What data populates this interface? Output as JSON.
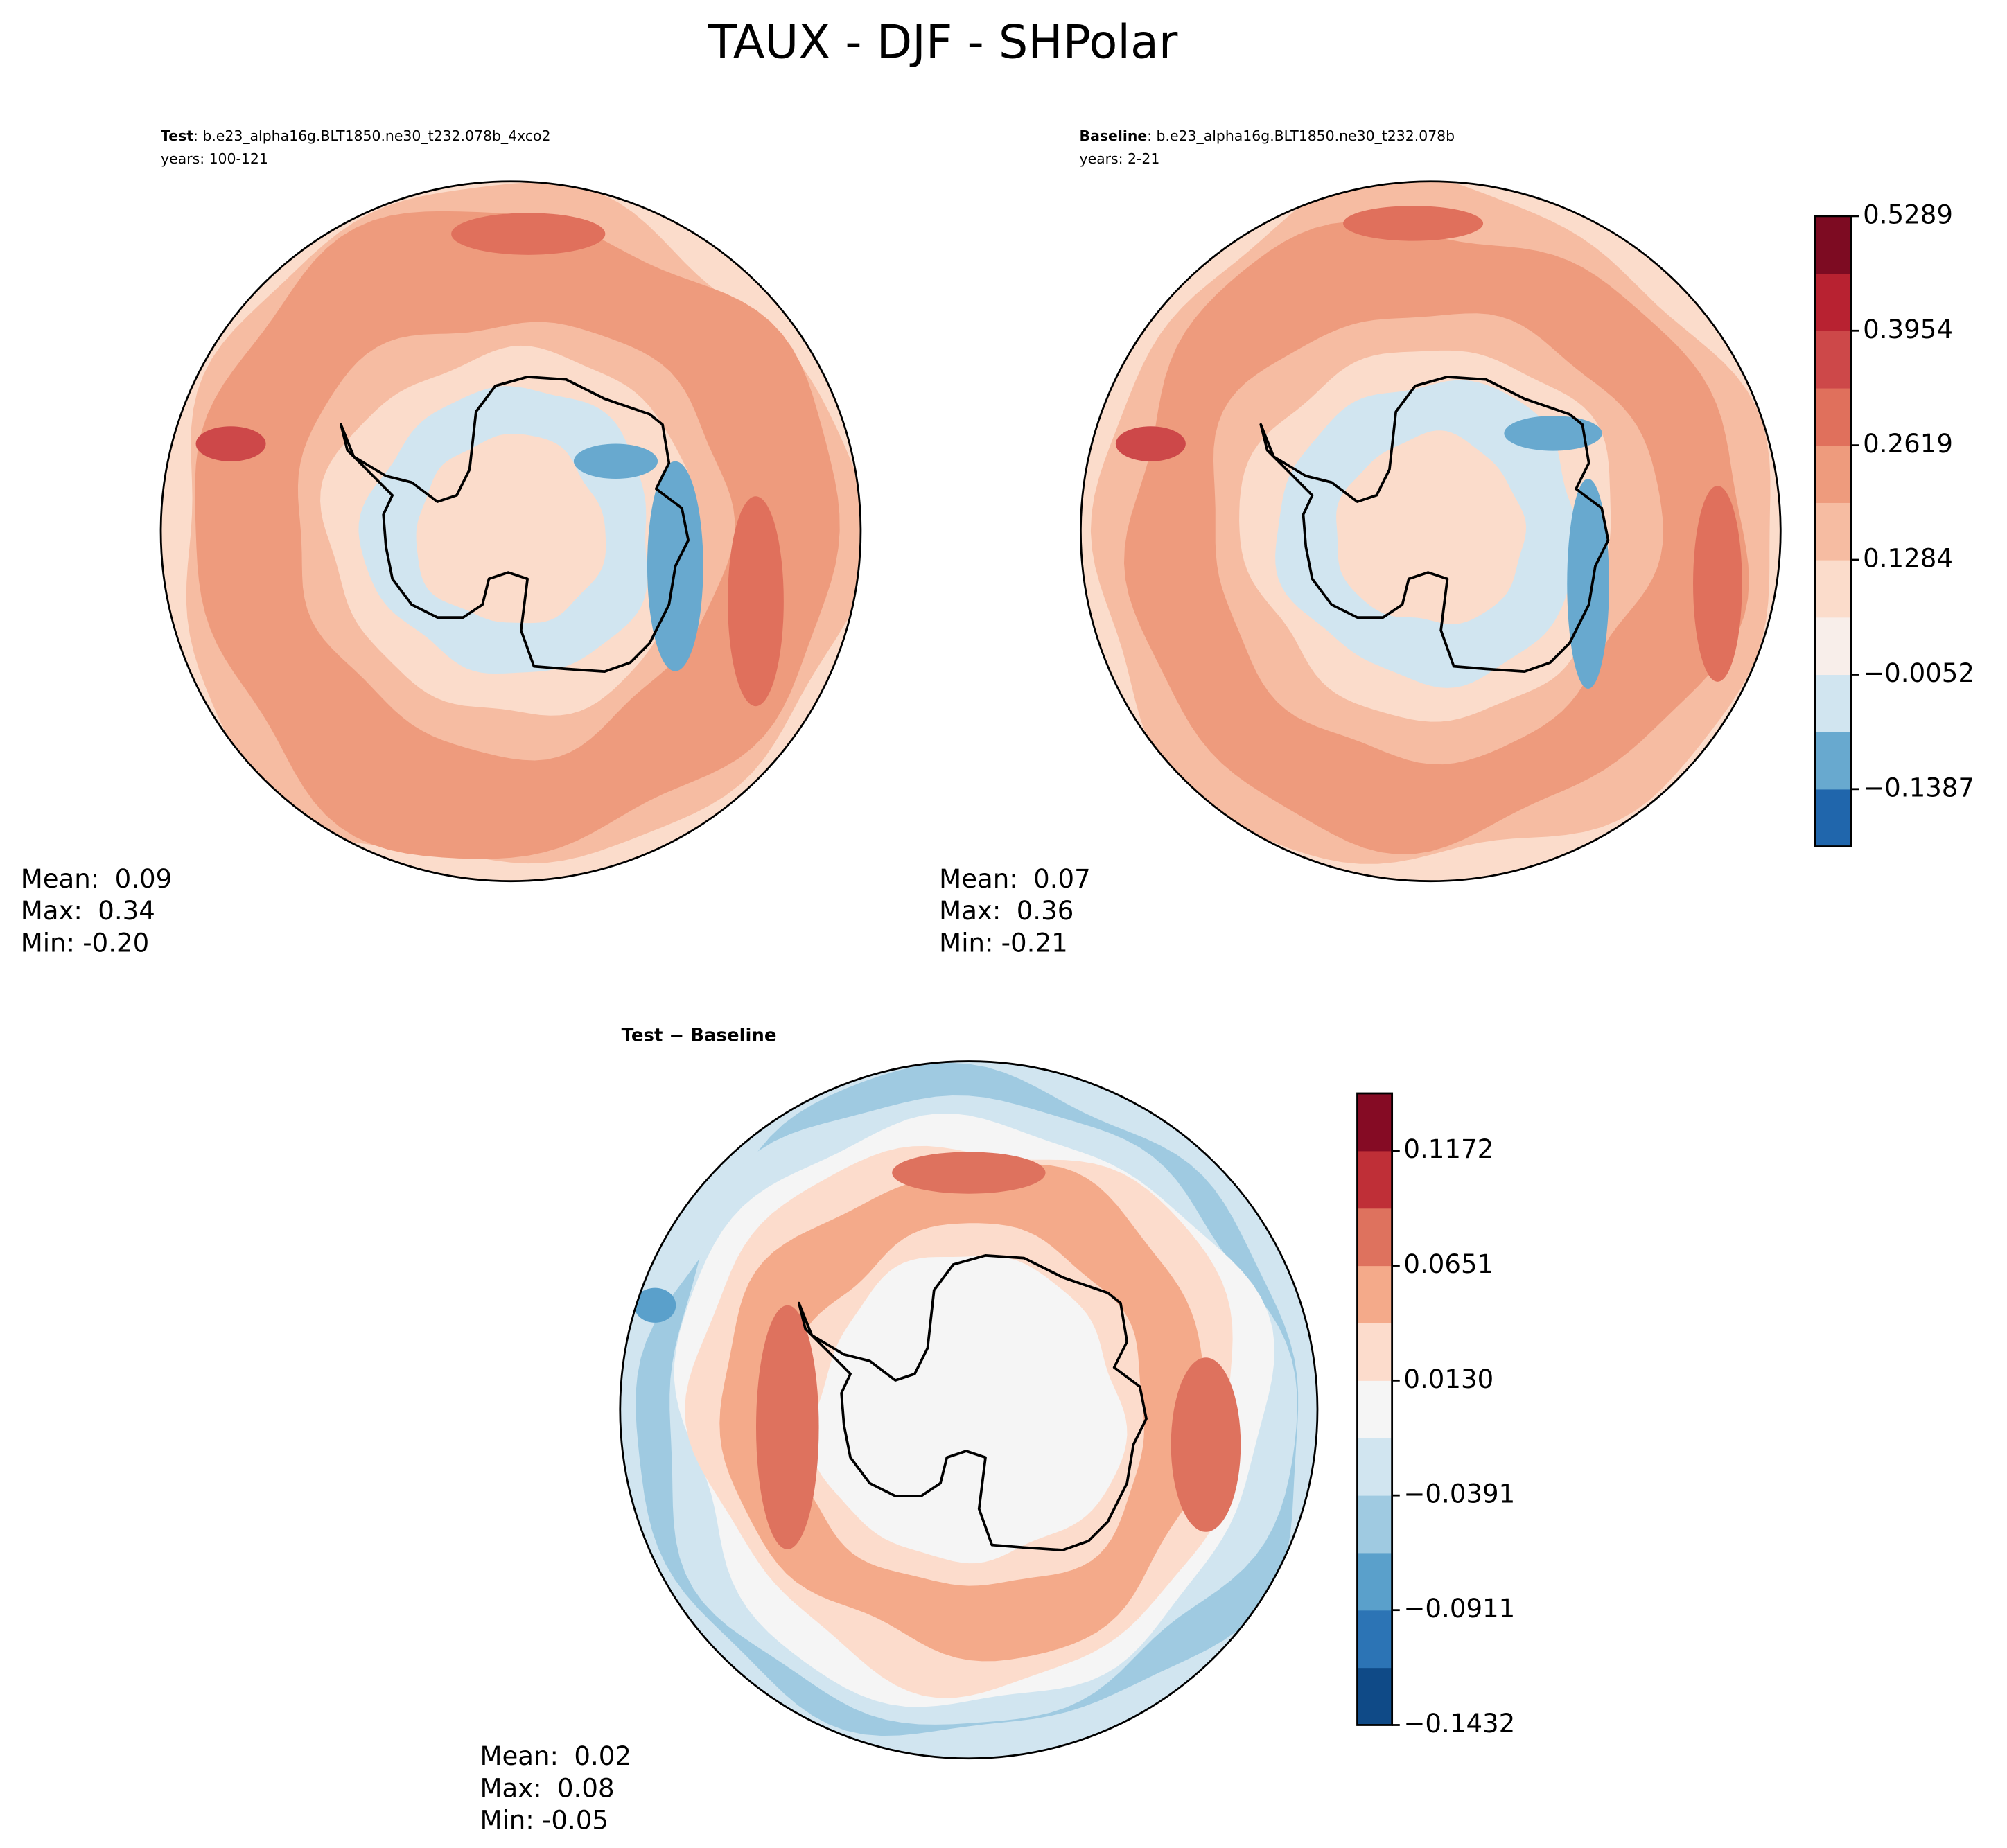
{
  "title": "TAUX - DJF - SHPolar",
  "chart_data": [
    {
      "type": "polar-contour",
      "label_bold": "Test",
      "label": ": b.e23_alpha16g.BLT1850.ne30_t232.078b_4xco2",
      "subtitle": "years: 100-121",
      "stats": {
        "labels": [
          "Mean:",
          "Max:",
          "Min:"
        ],
        "values": [
          "0.09",
          "0.34",
          "-0.20"
        ]
      }
    },
    {
      "type": "polar-contour",
      "label_bold": "Baseline",
      "label": ": b.e23_alpha16g.BLT1850.ne30_t232.078b",
      "subtitle": "years: 2-21",
      "stats": {
        "labels": [
          "Mean:",
          "Max:",
          "Min:"
        ],
        "values": [
          "0.07",
          "0.36",
          "-0.21"
        ]
      },
      "colorbar": {
        "ylim": [
          -0.2055,
          0.5289
        ],
        "yticks": [
          0.5289,
          0.3954,
          0.2619,
          0.1284,
          {
            "value": -0.0052,
            "label": "−0.0052"
          },
          {
            "value": -0.1387,
            "label": "−0.1387"
          }
        ],
        "colors": [
          "#2066ac",
          "#68a9cf",
          "#d1e5f0",
          "#f8eeea",
          "#fbdccb",
          "#f6bca2",
          "#ee9b7d",
          "#e0705c",
          "#cd4849",
          "#b82231",
          "#7d0b22"
        ]
      }
    },
    {
      "type": "polar-contour",
      "label_bold": "Test − Baseline",
      "stats": {
        "labels": [
          "Mean:",
          "Max:",
          "Min:"
        ],
        "values": [
          "0.02",
          "0.08",
          "-0.05"
        ]
      },
      "colorbar": {
        "ylim": [
          -0.1432,
          0.1432
        ],
        "yticks": [
          0.1172,
          0.0651,
          {
            "value": 0.013,
            "label": "0.0130"
          },
          {
            "value": -0.0391,
            "label": "−0.0391"
          },
          {
            "value": -0.0911,
            "label": "−0.0911"
          },
          {
            "value": -0.1432,
            "label": "−0.1432"
          }
        ],
        "colors": [
          "#0f4a87",
          "#2c74b5",
          "#5aa0cb",
          "#9fcae1",
          "#d1e5f0",
          "#f5f5f5",
          "#fcdccc",
          "#f4aa8a",
          "#de725e",
          "#bf2f37",
          "#850b24"
        ]
      }
    }
  ]
}
